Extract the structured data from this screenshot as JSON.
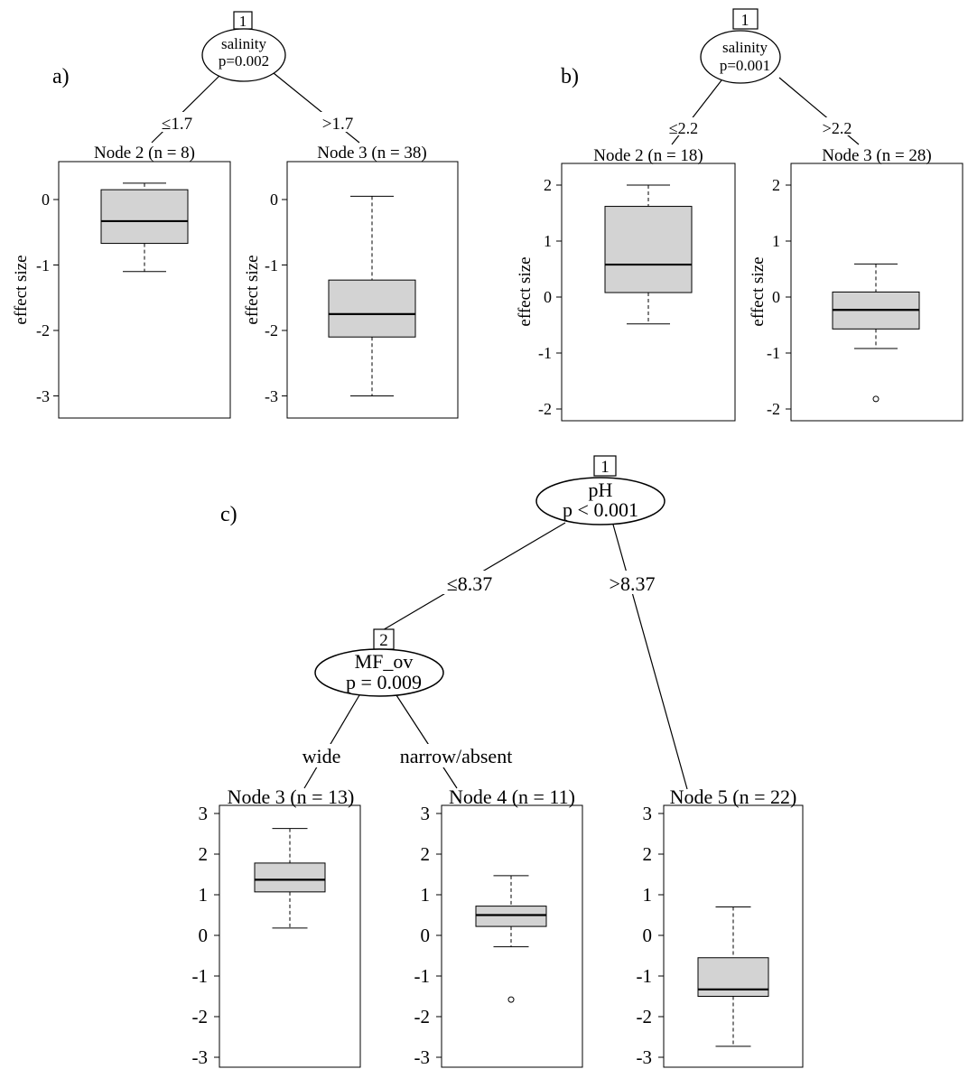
{
  "panel_a": {
    "label": "a)",
    "node": {
      "id": "1",
      "variable": "salinity",
      "p": "p=0.002"
    },
    "edges": [
      "≤1.7",
      ">1.7"
    ],
    "ylabel": "effect size",
    "ticks": [
      "0",
      "-1",
      "-2",
      "-3"
    ]
  },
  "panel_b": {
    "label": "b)",
    "node": {
      "id": "1",
      "variable": "salinity",
      "p": "p=0.001"
    },
    "edges": [
      "≤2.2",
      ">2.2"
    ],
    "ylabel": "effect size",
    "ticks": [
      "2",
      "1",
      "0",
      "-1",
      "-2"
    ]
  },
  "panel_c": {
    "label": "c)",
    "node1": {
      "id": "1",
      "variable": "pH",
      "p": "p < 0.001"
    },
    "node2": {
      "id": "2",
      "variable": "MF_ov",
      "p": "p = 0.009"
    },
    "edges1": [
      "≤8.37",
      ">8.37"
    ],
    "edges2": [
      "wide",
      "narrow/absent"
    ],
    "ticks": [
      "3",
      "2",
      "1",
      "0",
      "-1",
      "-2",
      "-3"
    ]
  },
  "colors": {
    "box_fill": "#d3d3d3",
    "line": "#000000"
  },
  "chart_data": [
    {
      "type": "boxplot",
      "panel": "a",
      "ylabel": "effect size",
      "ylim": [
        -3.3,
        0.6
      ],
      "yticks": [
        0,
        -1,
        -2,
        -3
      ],
      "boxes": [
        {
          "title": "Node 2 (n = 8)",
          "whisker_low": -1.1,
          "q1": -0.67,
          "median": -0.33,
          "q3": 0.15,
          "whisker_high": 0.25,
          "outliers": []
        },
        {
          "title": "Node 3 (n = 38)",
          "whisker_low": -3.0,
          "q1": -2.1,
          "median": -1.75,
          "q3": -1.23,
          "whisker_high": 0.05,
          "outliers": []
        }
      ]
    },
    {
      "type": "boxplot",
      "panel": "b",
      "ylabel": "effect size",
      "ylim": [
        -2.2,
        2.4
      ],
      "yticks": [
        2,
        1,
        0,
        -1,
        -2
      ],
      "boxes": [
        {
          "title": "Node 2 (n = 18)",
          "whisker_low": -0.48,
          "q1": 0.08,
          "median": 0.58,
          "q3": 1.62,
          "whisker_high": 2.0,
          "outliers": []
        },
        {
          "title": "Node 3 (n = 28)",
          "whisker_low": -0.92,
          "q1": -0.57,
          "median": -0.23,
          "q3": 0.09,
          "whisker_high": 0.59,
          "outliers": [
            -1.82
          ]
        }
      ]
    },
    {
      "type": "boxplot",
      "panel": "c",
      "ylim": [
        -3.2,
        3.2
      ],
      "yticks": [
        3,
        2,
        1,
        0,
        -1,
        -2,
        -3
      ],
      "boxes": [
        {
          "title": "Node 3 (n = 13)",
          "whisker_low": 0.18,
          "q1": 1.07,
          "median": 1.37,
          "q3": 1.78,
          "whisker_high": 2.63,
          "outliers": []
        },
        {
          "title": "Node 4 (n = 11)",
          "whisker_low": -0.28,
          "q1": 0.22,
          "median": 0.5,
          "q3": 0.72,
          "whisker_high": 1.47,
          "outliers": [
            -1.58
          ]
        },
        {
          "title": "Node 5 (n = 22)",
          "whisker_low": -2.73,
          "q1": -1.5,
          "median": -1.33,
          "q3": -0.55,
          "whisker_high": 0.7,
          "outliers": []
        }
      ]
    }
  ]
}
